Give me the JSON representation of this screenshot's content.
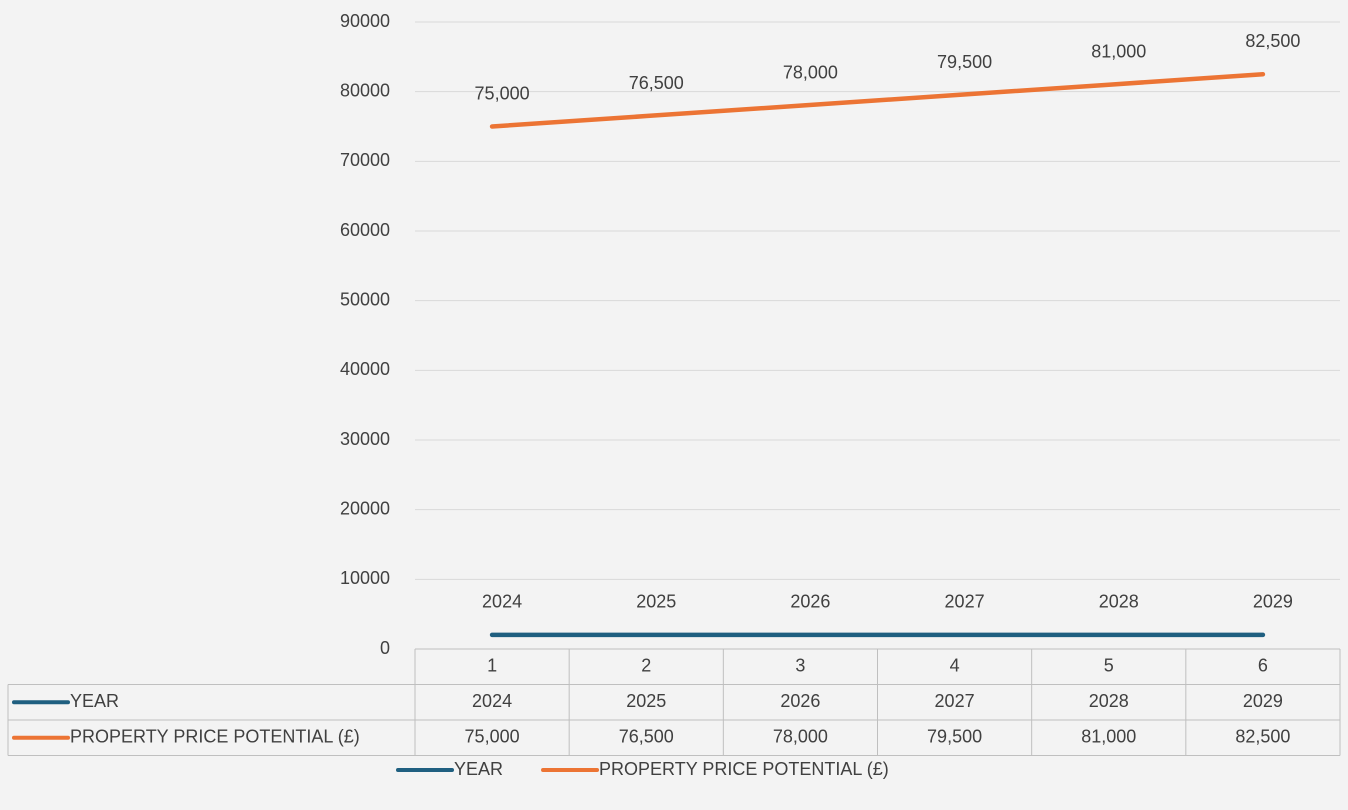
{
  "chart_data": {
    "type": "line",
    "categories": [
      "1",
      "2",
      "3",
      "4",
      "5",
      "6"
    ],
    "series": [
      {
        "name": "YEAR",
        "color": "#1f5f80",
        "values": [
          2024,
          2025,
          2026,
          2027,
          2028,
          2029
        ]
      },
      {
        "name": "PROPERTY PRICE POTENTIAL (£)",
        "color": "#ec7434",
        "values": [
          75000,
          76500,
          78000,
          79500,
          81000,
          82500
        ],
        "value_labels": [
          "75,000",
          "76,500",
          "78,000",
          "79,500",
          "81,000",
          "82,500"
        ]
      }
    ],
    "ylim": [
      0,
      90000
    ],
    "yticks": [
      0,
      10000,
      20000,
      30000,
      40000,
      50000,
      60000,
      70000,
      80000,
      90000
    ],
    "grid": true,
    "legend": "bottom"
  }
}
